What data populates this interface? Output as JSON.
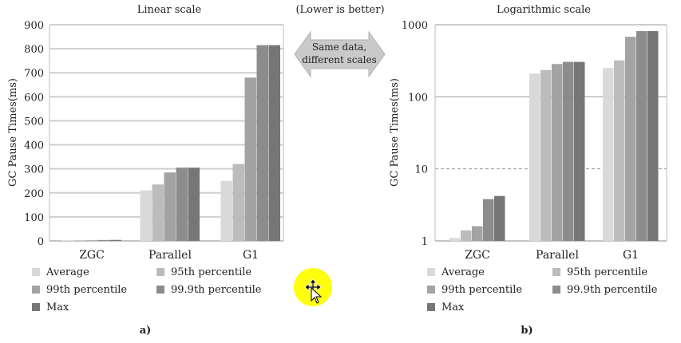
{
  "header_note": "(Lower is better)",
  "banner": {
    "line1": "Same data,",
    "line2": "different scales"
  },
  "chart_data": [
    {
      "type": "bar",
      "title": "Linear scale",
      "ylabel": "GC Pause Times(ms)",
      "xlabel": "",
      "subfigure_label": "a)",
      "scale": "linear",
      "ylim": [
        0,
        900
      ],
      "yticks": [
        0,
        100,
        200,
        300,
        400,
        500,
        600,
        700,
        800,
        900
      ],
      "ytick_labels": [
        "0",
        "100",
        "200",
        "300",
        "400",
        "500",
        "600",
        "700",
        "800",
        "900"
      ],
      "categories": [
        "ZGC",
        "Parallel",
        "G1"
      ],
      "series": [
        {
          "name": "Average",
          "values": [
            1.1,
            210,
            250
          ],
          "color": "#d9d9d9"
        },
        {
          "name": "95th percentile",
          "values": [
            1.4,
            235,
            320
          ],
          "color": "#bcbcbc"
        },
        {
          "name": "99th percentile",
          "values": [
            1.6,
            285,
            680
          ],
          "color": "#a3a3a3"
        },
        {
          "name": "99.9th percentile",
          "values": [
            3.8,
            305,
            815
          ],
          "color": "#8c8c8c"
        },
        {
          "name": "Max",
          "values": [
            4.2,
            305,
            815
          ],
          "color": "#767676"
        }
      ],
      "grid": true,
      "legend": "bottom"
    },
    {
      "type": "bar",
      "title": "Logarithmic scale",
      "ylabel": "GC Pause Times(ms)",
      "xlabel": "",
      "subfigure_label": "b)",
      "scale": "log",
      "ylim": [
        1,
        1000
      ],
      "yticks": [
        1,
        10,
        100,
        1000
      ],
      "ytick_labels": [
        "1",
        "10",
        "100",
        "1000"
      ],
      "categories": [
        "ZGC",
        "Parallel",
        "G1"
      ],
      "series": [
        {
          "name": "Average",
          "values": [
            1.1,
            210,
            250
          ],
          "color": "#d9d9d9"
        },
        {
          "name": "95th percentile",
          "values": [
            1.4,
            235,
            320
          ],
          "color": "#bcbcbc"
        },
        {
          "name": "99th percentile",
          "values": [
            1.6,
            285,
            680
          ],
          "color": "#a3a3a3"
        },
        {
          "name": "99.9th percentile",
          "values": [
            3.8,
            305,
            815
          ],
          "color": "#8c8c8c"
        },
        {
          "name": "Max",
          "values": [
            4.2,
            305,
            815
          ],
          "color": "#767676"
        }
      ],
      "grid": true,
      "legend": "bottom"
    }
  ]
}
